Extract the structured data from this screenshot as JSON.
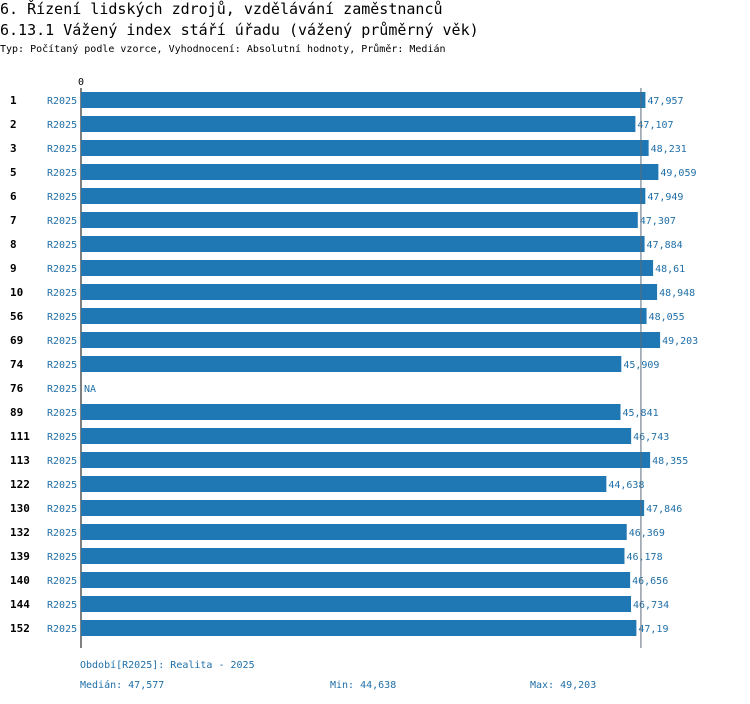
{
  "header": {
    "title": "6. Řízení lidských zdrojů, vzdělávání zaměstnanců",
    "subtitle": "6.13.1 Vážený index stáří úřadu (vážený průměrný věk)",
    "type_line": "Typ: Počítaný podle vzorce, Vyhodnocení: Absolutní hodnoty, Průměr: Medián"
  },
  "footer": {
    "period": "Období[R2025]: Realita - 2025",
    "median": "Medián: 47,577",
    "min": "Min: 44,638",
    "max": "Max: 49,203"
  },
  "colors": {
    "bar": "#1f77b4",
    "label": "#1f6fa8",
    "axis": "#000000"
  },
  "chart_data": {
    "type": "bar",
    "orientation": "horizontal",
    "axis_zero_label": "0",
    "xlim": [
      0,
      52
    ],
    "median_line": 47.577,
    "series_label": "R2025",
    "na_label": "NA",
    "categories": [
      "1",
      "2",
      "3",
      "5",
      "6",
      "7",
      "8",
      "9",
      "10",
      "56",
      "69",
      "74",
      "76",
      "89",
      "111",
      "113",
      "122",
      "130",
      "132",
      "139",
      "140",
      "144",
      "152"
    ],
    "values": [
      47.957,
      47.107,
      48.231,
      49.059,
      47.949,
      47.307,
      47.884,
      48.61,
      48.948,
      48.055,
      49.203,
      45.909,
      null,
      45.841,
      46.743,
      48.355,
      44.638,
      47.846,
      46.369,
      46.178,
      46.656,
      46.734,
      47.19
    ],
    "value_labels": [
      "47,957",
      "47,107",
      "48,231",
      "49,059",
      "47,949",
      "47,307",
      "47,884",
      "48,61",
      "48,948",
      "48,055",
      "49,203",
      "45,909",
      "NA",
      "45,841",
      "46,743",
      "48,355",
      "44,638",
      "47,846",
      "46,369",
      "46,178",
      "46,656",
      "46,734",
      "47,19"
    ]
  }
}
